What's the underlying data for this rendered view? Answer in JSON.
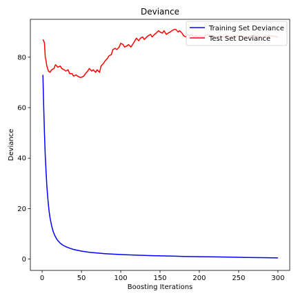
{
  "chart_data": {
    "type": "line",
    "title": "Deviance",
    "xlabel": "Boosting Iterations",
    "ylabel": "Deviance",
    "xlim": [
      -15,
      315
    ],
    "ylim": [
      -4.5,
      95
    ],
    "xticks": [
      0,
      50,
      100,
      150,
      200,
      250,
      300
    ],
    "yticks": [
      0,
      20,
      40,
      60,
      80
    ],
    "grid": false,
    "legend_position": "top-right",
    "series": [
      {
        "name": "Training Set Deviance",
        "color": "#0000ff",
        "x": [
          1,
          2,
          3,
          4,
          5,
          6,
          7,
          8,
          9,
          10,
          12,
          14,
          16,
          18,
          20,
          23,
          26,
          30,
          35,
          40,
          45,
          50,
          60,
          70,
          80,
          90,
          100,
          120,
          140,
          160,
          180,
          200,
          220,
          240,
          260,
          280,
          300
        ],
        "y": [
          73.0,
          60.0,
          49.5,
          41.0,
          34.5,
          29.0,
          24.8,
          21.4,
          18.7,
          16.4,
          13.2,
          11.0,
          9.4,
          8.2,
          7.3,
          6.3,
          5.6,
          4.9,
          4.3,
          3.8,
          3.45,
          3.15,
          2.7,
          2.4,
          2.15,
          1.95,
          1.8,
          1.55,
          1.35,
          1.2,
          1.05,
          0.95,
          0.85,
          0.75,
          0.65,
          0.55,
          0.45
        ]
      },
      {
        "name": "Test Set Deviance",
        "color": "#ff0000",
        "x": [
          1,
          2,
          3,
          4,
          5,
          6,
          8,
          10,
          12,
          15,
          17,
          20,
          23,
          25,
          28,
          30,
          33,
          35,
          38,
          40,
          43,
          45,
          48,
          50,
          53,
          55,
          58,
          60,
          63,
          65,
          68,
          70,
          73,
          75,
          78,
          80,
          83,
          85,
          88,
          90,
          93,
          95,
          98,
          100,
          103,
          105,
          108,
          110,
          113,
          115,
          118,
          120,
          123,
          125,
          128,
          130,
          133,
          135,
          138,
          140,
          143,
          145,
          148,
          150,
          153,
          155,
          158,
          160,
          163,
          165,
          168,
          170,
          173,
          175,
          178,
          180,
          183,
          185,
          188,
          190,
          193,
          195,
          198,
          200,
          205,
          210,
          215,
          220,
          225,
          230,
          240,
          250,
          260,
          270,
          280,
          290,
          300
        ],
        "y": [
          87.0,
          86.5,
          85.5,
          80.0,
          78.5,
          76.5,
          74.5,
          74.0,
          75.0,
          75.5,
          77.0,
          76.0,
          76.5,
          75.5,
          75.0,
          74.5,
          75.0,
          73.5,
          73.5,
          72.5,
          73.0,
          72.5,
          72.0,
          72.0,
          72.5,
          73.5,
          74.5,
          75.5,
          74.5,
          75.0,
          74.0,
          75.0,
          74.0,
          76.5,
          77.5,
          78.5,
          79.5,
          80.5,
          81.0,
          83.0,
          83.5,
          83.0,
          84.0,
          85.5,
          85.0,
          84.0,
          84.5,
          85.0,
          84.0,
          85.0,
          86.5,
          87.5,
          86.5,
          87.5,
          88.0,
          87.0,
          88.0,
          88.5,
          89.0,
          88.0,
          89.0,
          89.5,
          90.5,
          90.0,
          89.5,
          90.5,
          89.0,
          89.5,
          90.0,
          90.5,
          91.0,
          91.0,
          90.0,
          90.5,
          89.5,
          88.5,
          88.0,
          89.0,
          88.5,
          89.0,
          88.0,
          88.5,
          88.0,
          88.5,
          88.0,
          89.0,
          88.5,
          88.0,
          88.5,
          88.0,
          88.0,
          88.5,
          88.0,
          88.5,
          88.0,
          88.5,
          88.0
        ]
      }
    ]
  }
}
